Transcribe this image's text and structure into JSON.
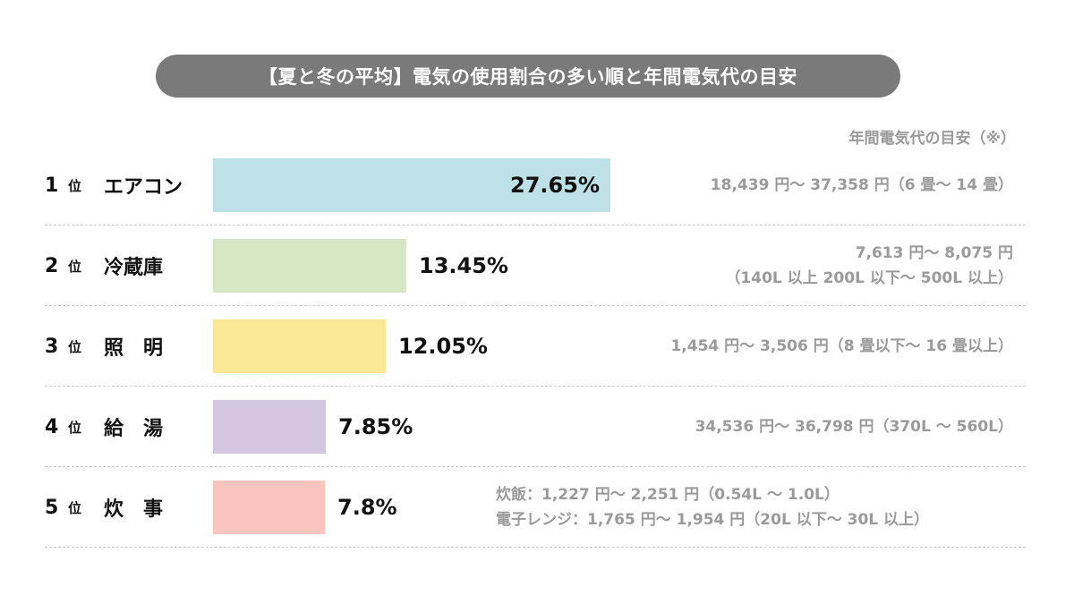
{
  "title": "【夏と冬の平均】電気の使用割合の多い順と年間電気代の目安",
  "cost_header": "年間電気代の目安（※）",
  "rank_suffix": "位",
  "chart_data": {
    "type": "bar",
    "orientation": "horizontal",
    "title": "【夏と冬の平均】電気の使用割合の多い順と年間電気代の目安",
    "categories": [
      "エアコン",
      "冷蔵庫",
      "照　明",
      "給　湯",
      "炊　事"
    ],
    "values": [
      27.65,
      13.45,
      12.05,
      7.85,
      7.8
    ],
    "value_labels": [
      "27.65%",
      "13.45%",
      "12.05%",
      "7.85%",
      "7.8%"
    ],
    "ranks": [
      "1",
      "2",
      "3",
      "4",
      "5"
    ],
    "colors": [
      "#bde1e6",
      "#d5e8c3",
      "#fbe897",
      "#d4c5e0",
      "#f9c5bd"
    ]
  },
  "rows": [
    {
      "rank": "1",
      "name": "エアコン",
      "pct": "27.65%",
      "cost_lines": [
        "18,439 円～ 37,358 円（6 畳～ 14 畳）"
      ]
    },
    {
      "rank": "2",
      "name": "冷蔵庫",
      "pct": "13.45%",
      "cost_lines": [
        "7,613 円～ 8,075 円",
        "（140L 以上 200L 以下～ 500L 以上）"
      ]
    },
    {
      "rank": "3",
      "name": "照　明",
      "pct": "12.05%",
      "cost_lines": [
        "1,454 円～ 3,506 円（8 畳以下～ 16 畳以上）"
      ]
    },
    {
      "rank": "4",
      "name": "給　湯",
      "pct": "7.85%",
      "cost_lines": [
        "34,536 円～ 36,798 円（370L ～ 560L）"
      ]
    },
    {
      "rank": "5",
      "name": "炊　事",
      "pct": "7.8%",
      "cost_lines": [
        "炊飯：1,227 円～ 2,251 円（0.54L ～ 1.0L）",
        "電子レンジ：1,765 円～ 1,954 円（20L 以下～ 30L 以上）"
      ]
    }
  ]
}
